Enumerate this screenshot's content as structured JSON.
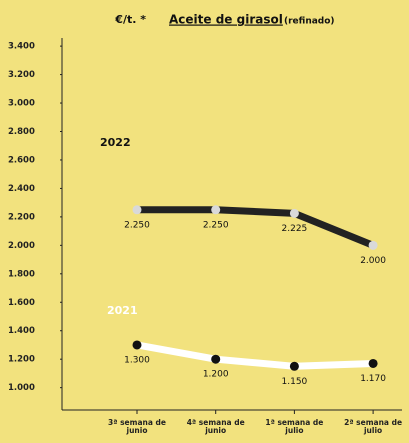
{
  "chart_data": {
    "type": "line",
    "unit": "€/t. *",
    "title": "Aceite de girasol",
    "subtitle": "(refinado)",
    "categories": [
      "3ª semana de junio",
      "4ª semana de junio",
      "1ª semana de julio",
      "2ª semana de julio"
    ],
    "series": [
      {
        "name": "2022",
        "color": "#222222",
        "marker_color": "#d9d9d9",
        "label_color": "#111111",
        "values": [
          2250,
          2250,
          2225,
          2000
        ],
        "value_labels": [
          "2.250",
          "2.250",
          "2.225",
          "2.000"
        ]
      },
      {
        "name": "2021",
        "color": "#ffffff",
        "marker_color": "#111111",
        "label_color": "#ffffff",
        "values": [
          1300,
          1200,
          1150,
          1170
        ],
        "value_labels": [
          "1.300",
          "1.200",
          "1.150",
          "1.170"
        ]
      }
    ],
    "ylim": [
      850,
      3450
    ],
    "yticks": [
      {
        "value": 1000,
        "label": "1.000"
      },
      {
        "value": 1200,
        "label": "1.200"
      },
      {
        "value": 1400,
        "label": "1.400"
      },
      {
        "value": 1600,
        "label": "1.600"
      },
      {
        "value": 1800,
        "label": "1.800"
      },
      {
        "value": 2000,
        "label": "2.000"
      },
      {
        "value": 2200,
        "label": "2.200"
      },
      {
        "value": 2400,
        "label": "2.400"
      },
      {
        "value": 2600,
        "label": "2.600"
      },
      {
        "value": 2800,
        "label": "2.800"
      },
      {
        "value": 3000,
        "label": "3.000"
      },
      {
        "value": 3200,
        "label": "3.200"
      },
      {
        "value": 3400,
        "label": "3.400"
      }
    ],
    "grid": false
  }
}
